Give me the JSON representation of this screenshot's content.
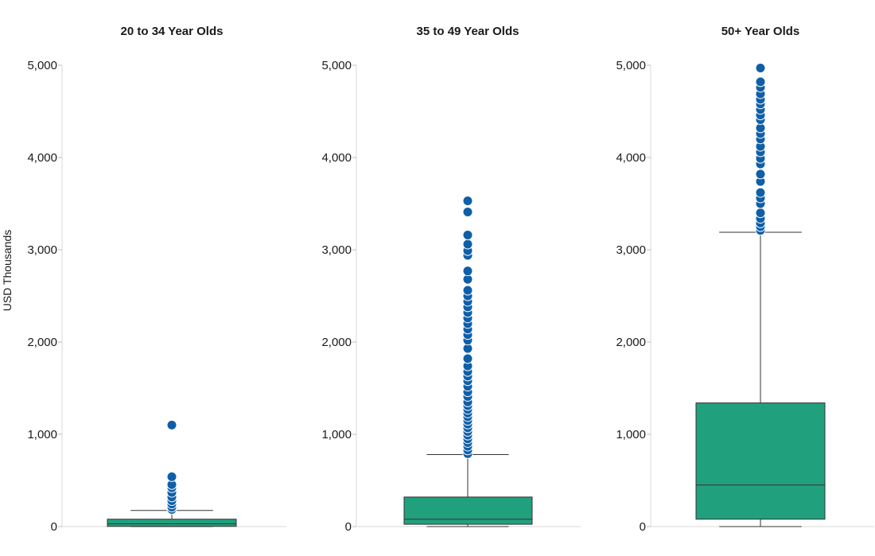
{
  "chart_data": {
    "type": "box",
    "ylabel": "USD Thousands",
    "ylim": [
      0,
      5000
    ],
    "yticks": [
      0,
      1000,
      2000,
      3000,
      4000,
      5000
    ],
    "tick_labels": [
      "0",
      "1,000",
      "2,000",
      "3,000",
      "4,000",
      "5,000"
    ],
    "colors": {
      "box": "#21a07e",
      "outlier": "#0f5fa8"
    },
    "panels": [
      {
        "title": "20 to 34 Year Olds",
        "min": 0,
        "q1": 2,
        "median": 30,
        "q3": 80,
        "max": 175,
        "outliers": [
          185,
          210,
          245,
          280,
          320,
          370,
          420,
          455,
          540,
          1100
        ]
      },
      {
        "title": "35 to 49 Year Olds",
        "min": 0,
        "q1": 25,
        "median": 80,
        "q3": 320,
        "max": 780,
        "outliers": [
          790,
          830,
          870,
          910,
          950,
          990,
          1030,
          1070,
          1110,
          1150,
          1190,
          1230,
          1270,
          1310,
          1350,
          1410,
          1460,
          1520,
          1580,
          1630,
          1680,
          1740,
          1820,
          1930,
          2020,
          2080,
          2140,
          2200,
          2260,
          2320,
          2380,
          2440,
          2500,
          2560,
          2680,
          2770,
          2940,
          2990,
          3060,
          3160,
          3410,
          3530
        ]
      },
      {
        "title": "50+ Year Olds",
        "min": 0,
        "q1": 80,
        "median": 450,
        "q3": 1340,
        "max": 3190,
        "outliers": [
          3210,
          3250,
          3290,
          3340,
          3400,
          3500,
          3560,
          3620,
          3740,
          3820,
          3930,
          3990,
          4060,
          4120,
          4200,
          4260,
          4320,
          4410,
          4460,
          4520,
          4580,
          4630,
          4690,
          4760,
          4820,
          4970
        ]
      }
    ]
  }
}
